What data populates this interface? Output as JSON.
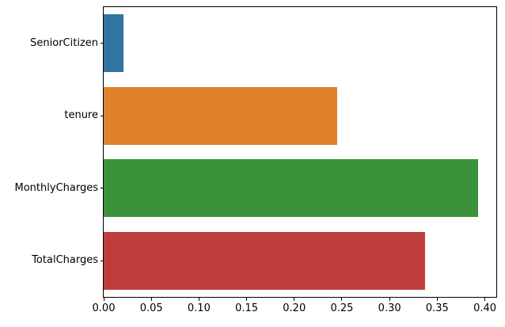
{
  "figure": {
    "background_color": "#ffffff",
    "spine_color": "#000000",
    "tick_color": "#000000",
    "text_color": "#000000"
  },
  "chart_data": {
    "type": "bar",
    "orientation": "horizontal",
    "title": "",
    "xlabel": "",
    "ylabel": "",
    "categories": [
      "SeniorCitizen",
      "tenure",
      "MonthlyCharges",
      "TotalCharges"
    ],
    "values": [
      0.021,
      0.245,
      0.393,
      0.337
    ],
    "bar_colors": [
      "#3274a1",
      "#e1812c",
      "#3a923a",
      "#c03d3e"
    ],
    "xlim": [
      0,
      0.412
    ],
    "x_ticks": [
      0.0,
      0.05,
      0.1,
      0.15,
      0.2,
      0.25,
      0.3,
      0.35,
      0.4
    ],
    "x_tick_labels": [
      "0.00",
      "0.05",
      "0.10",
      "0.15",
      "0.20",
      "0.25",
      "0.30",
      "0.35",
      "0.40"
    ],
    "grid": false,
    "legend": null
  }
}
